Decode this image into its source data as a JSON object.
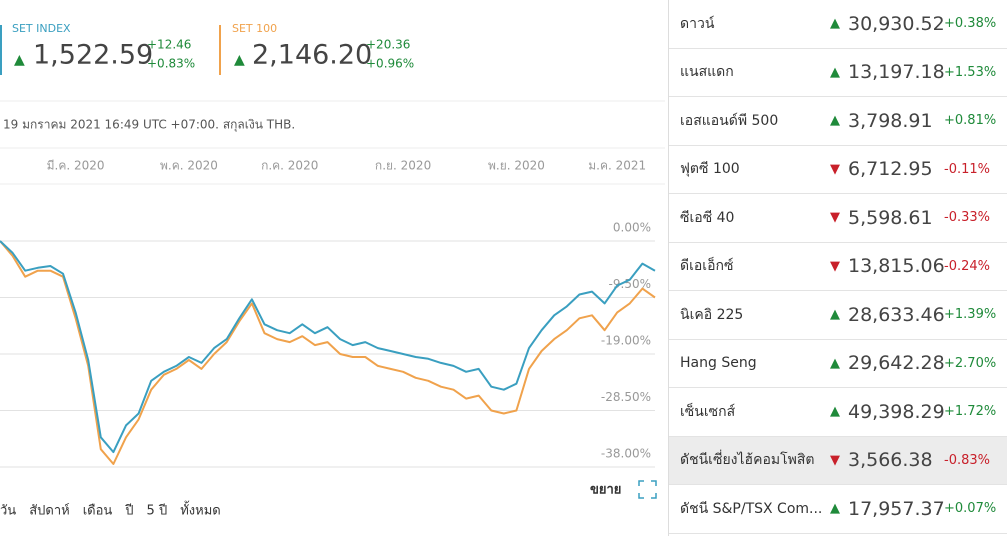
{
  "header": {
    "date_line": "19 มกราคม 2021 16:49 UTC +07:00. สกุลเงิน THB.",
    "quotes": [
      {
        "value": "1,522.59",
        "change": "+12.46",
        "change_pct": "+0.83%"
      },
      {
        "value": "2,146.20",
        "change": "+20.36",
        "change_pct": "+0.96%"
      }
    ]
  },
  "chart_data": {
    "type": "line",
    "categories": [
      null,
      null,
      null,
      null,
      null,
      null,
      "มี.ค. 2020",
      null,
      null,
      null,
      null,
      null,
      null,
      null,
      null,
      "พ.ค. 2020",
      null,
      null,
      null,
      null,
      null,
      null,
      null,
      "ก.ค. 2020",
      null,
      null,
      null,
      null,
      null,
      null,
      null,
      null,
      "ก.ย. 2020",
      null,
      null,
      null,
      null,
      null,
      null,
      null,
      null,
      "พ.ย. 2020",
      null,
      null,
      null,
      null,
      null,
      null,
      null,
      "ม.ค. 2021",
      null,
      null,
      null
    ],
    "series": [
      {
        "name": "SET INDEX",
        "color": "#3a9fc0",
        "values": [
          0,
          -2,
          -5,
          -4.5,
          -4.2,
          -5.5,
          -12,
          -20,
          -33,
          -35.5,
          -31,
          -29,
          -23.5,
          -22,
          -21,
          -19.5,
          -20.5,
          -18,
          -16.5,
          -13,
          -9.8,
          -14,
          -15,
          -15.5,
          -14,
          -15.5,
          -14.5,
          -16.5,
          -17.5,
          -17,
          -18,
          -18.5,
          -19,
          -19.5,
          -19.8,
          -20.5,
          -21,
          -22,
          -21.5,
          -24.5,
          -25,
          -24,
          -18,
          -15,
          -12.5,
          -11,
          -9,
          -8.5,
          -10.5,
          -7.5,
          -6.5,
          -3.8,
          -5
        ]
      },
      {
        "name": "SET 100",
        "color": "#f0a24c",
        "values": [
          0,
          -2.5,
          -6,
          -5,
          -5,
          -6,
          -13,
          -21,
          -35,
          -37.5,
          -33,
          -30,
          -25,
          -22.5,
          -21.5,
          -20,
          -21.5,
          -19,
          -17,
          -13.5,
          -10.5,
          -15.5,
          -16.5,
          -17,
          -16,
          -17.5,
          -17,
          -19,
          -19.5,
          -19.5,
          -21,
          -21.5,
          -22,
          -23,
          -23.5,
          -24.5,
          -25,
          -26.5,
          -26,
          -28.5,
          -29,
          -28.5,
          -21.5,
          -18.5,
          -16.5,
          -15,
          -13,
          -12.5,
          -15,
          -12,
          -10.5,
          -8,
          -9.5
        ]
      }
    ],
    "ylim": [
      -40,
      9.5
    ],
    "yticks": [
      {
        "value": 0,
        "label": "0.00%"
      },
      {
        "value": -9.5,
        "label": "-9.50%"
      },
      {
        "value": -19,
        "label": "-19.00%"
      },
      {
        "value": -28.5,
        "label": "-28.50%"
      },
      {
        "value": -38,
        "label": "-38.00%"
      }
    ],
    "grid": true
  },
  "controls": {
    "ranges": [
      "วัน",
      "สัปดาห์",
      "เดือน",
      "ปี",
      "5 ปี",
      "ทั้งหมด"
    ],
    "expand": "ขยาย"
  },
  "list": {
    "rows": [
      {
        "name": "ดาวน์",
        "value": "30,930.52",
        "change": "+0.38%"
      },
      {
        "name": "แนสแดก",
        "value": "13,197.18",
        "change": "+1.53%"
      },
      {
        "name": "เอสแอนด์พี 500",
        "value": "3,798.91",
        "change": "+0.81%"
      },
      {
        "name": "ฟุตซี 100",
        "value": "6,712.95",
        "change": "-0.11%"
      },
      {
        "name": "ซีเอซี 40",
        "value": "5,598.61",
        "change": "-0.33%"
      },
      {
        "name": "ดีเอเอ็กซ์",
        "value": "13,815.06",
        "change": "-0.24%"
      },
      {
        "name": "นิเคอิ 225",
        "value": "28,633.46",
        "change": "+1.39%"
      },
      {
        "name": "Hang Seng",
        "value": "29,642.28",
        "change": "+2.70%"
      },
      {
        "name": "เซ็นเซกส์",
        "value": "49,398.29",
        "change": "+1.72%"
      },
      {
        "name": "ดัชนีเซี่ยงไฮ้คอมโพสิต",
        "value": "3,566.38",
        "change": "-0.83%"
      },
      {
        "name": "ดัชนี S&P/TSX Com...",
        "value": "17,957.37",
        "change": "+0.07%"
      }
    ]
  }
}
